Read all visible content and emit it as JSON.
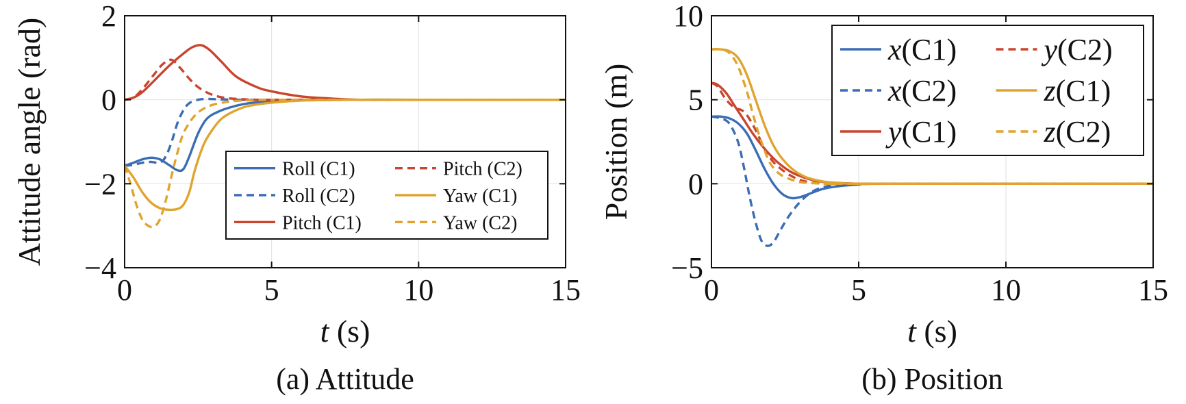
{
  "colors": {
    "blue": "#3a6db5",
    "red": "#c9452d",
    "orange": "#e0a42e"
  },
  "chart_data": [
    {
      "type": "line",
      "panel": "a",
      "caption": "(a) Attitude",
      "xlabel_var": "t",
      "xlabel_unit": " (s)",
      "ylabel": "Attitude angle (rad)",
      "xlim": [
        0,
        15
      ],
      "ylim": [
        -4,
        2
      ],
      "xticks": [
        0,
        5,
        10,
        15
      ],
      "yticks": [
        -4,
        -2,
        0,
        2
      ],
      "xtick_labels": [
        "0",
        "5",
        "10",
        "15"
      ],
      "ytick_labels": [
        "−4",
        "−2",
        "0",
        "2"
      ],
      "grid": true,
      "legend_position": "lower-right",
      "series": [
        {
          "name": "Roll (C1)",
          "color": "blue",
          "dash": false,
          "x": [
            0,
            0.3,
            0.6,
            0.9,
            1.2,
            1.5,
            1.8,
            2.0,
            2.2,
            2.5,
            2.8,
            3.2,
            3.6,
            4,
            4.5,
            5,
            6,
            8,
            10,
            15
          ],
          "y": [
            -1.57,
            -1.5,
            -1.42,
            -1.38,
            -1.42,
            -1.55,
            -1.68,
            -1.65,
            -1.35,
            -0.8,
            -0.45,
            -0.28,
            -0.18,
            -0.11,
            -0.06,
            -0.03,
            -0.01,
            0,
            0,
            0
          ]
        },
        {
          "name": "Roll (C2)",
          "color": "blue",
          "dash": true,
          "x": [
            0,
            0.3,
            0.6,
            0.9,
            1.2,
            1.4,
            1.6,
            1.8,
            2.0,
            2.2,
            2.5,
            2.8,
            3.2,
            4,
            5,
            15
          ],
          "y": [
            -1.57,
            -1.55,
            -1.5,
            -1.48,
            -1.5,
            -1.35,
            -1.0,
            -0.55,
            -0.25,
            -0.08,
            0,
            0.02,
            0.01,
            0,
            0,
            0
          ]
        },
        {
          "name": "Pitch (C1)",
          "color": "red",
          "dash": false,
          "x": [
            0,
            0.3,
            0.6,
            1.0,
            1.5,
            2.0,
            2.3,
            2.6,
            2.9,
            3.3,
            3.8,
            4.5,
            5,
            6,
            7,
            8,
            10,
            15
          ],
          "y": [
            0,
            0.05,
            0.18,
            0.45,
            0.8,
            1.1,
            1.25,
            1.3,
            1.18,
            0.9,
            0.55,
            0.3,
            0.2,
            0.08,
            0.03,
            0,
            0,
            0
          ]
        },
        {
          "name": "Pitch (C2)",
          "color": "red",
          "dash": true,
          "x": [
            0,
            0.3,
            0.6,
            1.0,
            1.3,
            1.6,
            1.9,
            2.2,
            2.5,
            2.9,
            3.3,
            3.8,
            4.5,
            5,
            6,
            15
          ],
          "y": [
            0,
            0.05,
            0.25,
            0.6,
            0.85,
            0.95,
            0.75,
            0.5,
            0.3,
            0.14,
            0.06,
            0.02,
            0,
            0,
            0,
            0
          ]
        },
        {
          "name": "Yaw (C1)",
          "color": "orange",
          "dash": false,
          "x": [
            0,
            0.3,
            0.6,
            0.9,
            1.2,
            1.5,
            1.8,
            2.0,
            2.2,
            2.4,
            2.7,
            3.0,
            3.3,
            3.7,
            4.2,
            5,
            6,
            8,
            10,
            15
          ],
          "y": [
            -1.57,
            -1.85,
            -2.2,
            -2.45,
            -2.58,
            -2.62,
            -2.6,
            -2.5,
            -2.2,
            -1.65,
            -1.05,
            -0.7,
            -0.45,
            -0.28,
            -0.15,
            -0.07,
            -0.02,
            0,
            0,
            0
          ]
        },
        {
          "name": "Yaw (C2)",
          "color": "orange",
          "dash": true,
          "x": [
            0,
            0.2,
            0.4,
            0.6,
            0.8,
            1.0,
            1.2,
            1.4,
            1.6,
            1.8,
            2.0,
            2.3,
            2.6,
            3.0,
            3.5,
            4,
            5,
            6,
            15
          ],
          "y": [
            -1.57,
            -2.0,
            -2.5,
            -2.85,
            -3.0,
            -3.02,
            -2.85,
            -2.4,
            -1.8,
            -1.25,
            -0.8,
            -0.45,
            -0.25,
            -0.12,
            -0.05,
            -0.02,
            0,
            0,
            0
          ]
        }
      ]
    },
    {
      "type": "line",
      "panel": "b",
      "caption": "(b) Position",
      "xlabel_var": "t",
      "xlabel_unit": " (s)",
      "ylabel": "Position (m)",
      "xlim": [
        0,
        15
      ],
      "ylim": [
        -5,
        10
      ],
      "xticks": [
        0,
        5,
        10,
        15
      ],
      "yticks": [
        -5,
        0,
        5,
        10
      ],
      "xtick_labels": [
        "0",
        "5",
        "10",
        "15"
      ],
      "ytick_labels": [
        "−5",
        "0",
        "5",
        "10"
      ],
      "grid": true,
      "legend_position": "top-right",
      "series": [
        {
          "name": "x(C1)",
          "var": "x",
          "tag": "(C1)",
          "color": "blue",
          "dash": false,
          "x": [
            0,
            0.3,
            0.6,
            0.9,
            1.2,
            1.5,
            1.8,
            2.1,
            2.4,
            2.7,
            3.0,
            3.4,
            3.8,
            4.3,
            5,
            6,
            15
          ],
          "y": [
            4,
            4,
            3.9,
            3.6,
            3.0,
            2.0,
            0.9,
            0,
            -0.6,
            -0.85,
            -0.8,
            -0.55,
            -0.3,
            -0.15,
            -0.05,
            0,
            0
          ]
        },
        {
          "name": "x(C2)",
          "var": "x",
          "tag": "(C2)",
          "color": "blue",
          "dash": true,
          "x": [
            0,
            0.3,
            0.6,
            0.9,
            1.1,
            1.3,
            1.5,
            1.7,
            1.9,
            2.1,
            2.3,
            2.6,
            3.0,
            3.4,
            3.8,
            4.3,
            5,
            6,
            15
          ],
          "y": [
            4,
            3.9,
            3.6,
            2.5,
            1.0,
            -0.8,
            -2.3,
            -3.4,
            -3.7,
            -3.5,
            -2.9,
            -2.0,
            -1.1,
            -0.5,
            -0.2,
            -0.05,
            0,
            0,
            0
          ]
        },
        {
          "name": "y(C1)",
          "var": "y",
          "tag": "(C1)",
          "color": "red",
          "dash": false,
          "x": [
            0,
            0.2,
            0.5,
            0.8,
            1.1,
            1.4,
            1.7,
            2.0,
            2.3,
            2.7,
            3.1,
            3.5,
            4,
            5,
            6,
            15
          ],
          "y": [
            6,
            5.9,
            5.4,
            4.6,
            3.8,
            3.0,
            2.3,
            1.7,
            1.2,
            0.7,
            0.4,
            0.2,
            0.08,
            0,
            0,
            0
          ]
        },
        {
          "name": "y(C2)",
          "var": "y",
          "tag": "(C2)",
          "color": "red",
          "dash": true,
          "x": [
            0,
            0.2,
            0.5,
            0.8,
            1.0,
            1.2,
            1.5,
            1.8,
            2.1,
            2.5,
            2.9,
            3.3,
            3.7,
            4.2,
            5,
            15
          ],
          "y": [
            6,
            5.8,
            5.0,
            4.5,
            4.4,
            4.1,
            3.2,
            2.1,
            1.3,
            0.7,
            0.3,
            0.1,
            0.02,
            0,
            0,
            0
          ]
        },
        {
          "name": "z(C1)",
          "var": "z",
          "tag": "(C1)",
          "color": "orange",
          "dash": false,
          "x": [
            0,
            0.3,
            0.6,
            0.9,
            1.2,
            1.5,
            1.8,
            2.1,
            2.4,
            2.8,
            3.2,
            3.6,
            4.0,
            4.5,
            5,
            6,
            15
          ],
          "y": [
            8,
            8,
            7.9,
            7.5,
            6.5,
            5.0,
            3.5,
            2.3,
            1.5,
            0.8,
            0.4,
            0.2,
            0.08,
            0.02,
            0,
            0,
            0
          ]
        },
        {
          "name": "z(C2)",
          "var": "z",
          "tag": "(C2)",
          "color": "orange",
          "dash": true,
          "x": [
            0,
            0.3,
            0.6,
            0.9,
            1.2,
            1.4,
            1.6,
            1.8,
            2.0,
            2.3,
            2.7,
            3.1,
            3.6,
            4.2,
            5,
            15
          ],
          "y": [
            8,
            8,
            7.8,
            7.0,
            5.5,
            4.2,
            3.0,
            2.0,
            1.2,
            0.6,
            0.25,
            0.08,
            0.02,
            0,
            0,
            0
          ]
        }
      ]
    }
  ]
}
